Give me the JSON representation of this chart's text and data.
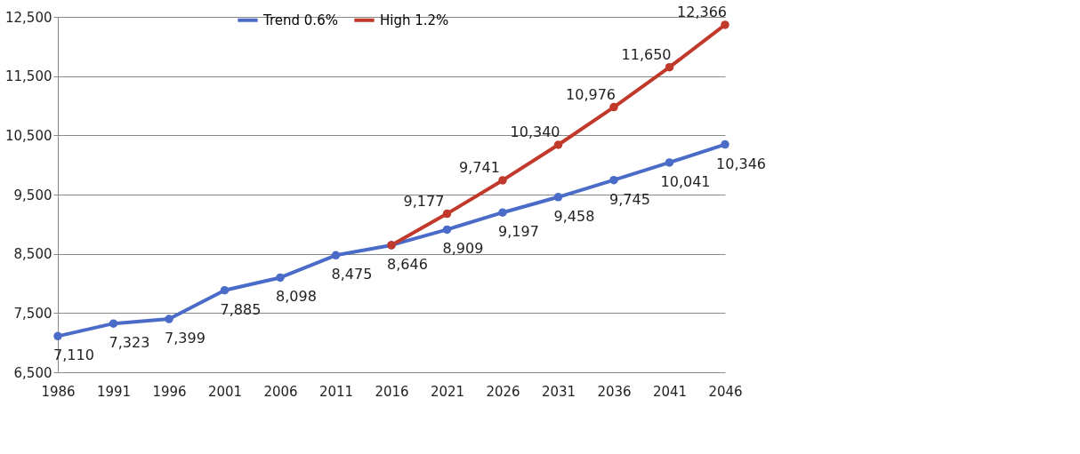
{
  "chart_data": {
    "type": "line",
    "categories": [
      "1986",
      "1991",
      "1996",
      "2001",
      "2006",
      "2011",
      "2016",
      "2021",
      "2026",
      "2031",
      "2036",
      "2041",
      "2046"
    ],
    "series": [
      {
        "name": "Trend 0.6%",
        "color": "#4a6cc8",
        "values": [
          7110,
          7323,
          7399,
          7885,
          8098,
          8475,
          8646,
          8909,
          9197,
          9458,
          9745,
          10041,
          10346
        ],
        "value_labels": [
          "7,110",
          "7,323",
          "7,399",
          "7,885",
          "8,098",
          "8,475",
          "8,646",
          "8,909",
          "9,197",
          "9,458",
          "9,745",
          "10,041",
          "10,346"
        ]
      },
      {
        "name": "High 1.2%",
        "color": "#c0392b",
        "values": [
          null,
          null,
          null,
          null,
          null,
          null,
          8646,
          9177,
          9741,
          10340,
          10976,
          11650,
          12366
        ],
        "value_labels": [
          null,
          null,
          null,
          null,
          null,
          null,
          null,
          "9,177",
          "9,741",
          "10,340",
          "10,976",
          "11,650",
          "12,366"
        ]
      }
    ],
    "ylim": [
      6500,
      12500
    ],
    "yticks": [
      {
        "value": 6500,
        "label": "6,500"
      },
      {
        "value": 7500,
        "label": "7,500"
      },
      {
        "value": 8500,
        "label": "8,500"
      },
      {
        "value": 9500,
        "label": "9,500"
      },
      {
        "value": 10500,
        "label": "10,500"
      },
      {
        "value": 11500,
        "label": "11,500"
      },
      {
        "value": 12500,
        "label": "12,500"
      }
    ],
    "grid": "y",
    "legend": "top",
    "marker": "circle",
    "line_style": "solid"
  }
}
